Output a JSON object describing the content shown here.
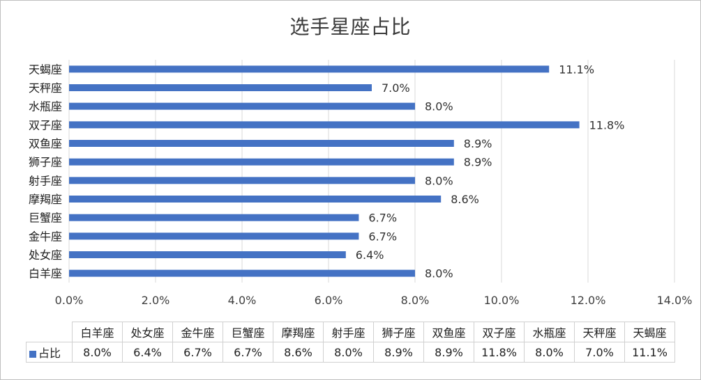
{
  "chart_data": {
    "type": "bar",
    "orientation": "horizontal",
    "title": "选手星座占比",
    "categories": [
      "白羊座",
      "处女座",
      "金牛座",
      "巨蟹座",
      "摩羯座",
      "射手座",
      "狮子座",
      "双鱼座",
      "双子座",
      "水瓶座",
      "天秤座",
      "天蝎座"
    ],
    "series": [
      {
        "name": "占比",
        "values": [
          8.0,
          6.4,
          6.7,
          6.7,
          8.6,
          8.0,
          8.9,
          8.9,
          11.8,
          8.0,
          7.0,
          11.1
        ]
      }
    ],
    "value_labels": [
      "8.0%",
      "6.4%",
      "6.7%",
      "6.7%",
      "8.6%",
      "8.0%",
      "8.9%",
      "8.9%",
      "11.8%",
      "8.0%",
      "7.0%",
      "11.1%"
    ],
    "xlim": [
      0,
      14
    ],
    "x_ticks": [
      "0.0%",
      "2.0%",
      "4.0%",
      "6.0%",
      "8.0%",
      "10.0%",
      "12.0%",
      "14.0%"
    ],
    "grid": true,
    "data_table": true,
    "bar_color": "#4472c4"
  }
}
